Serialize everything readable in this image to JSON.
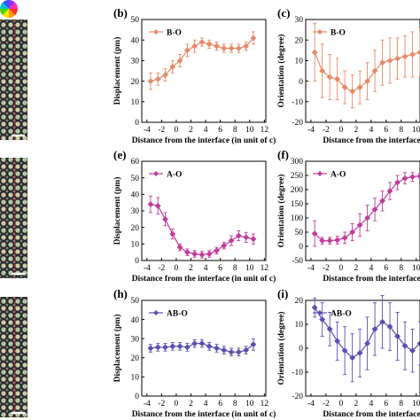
{
  "colors": {
    "bo": "#e58a67",
    "ao": "#c03a9e",
    "abo": "#5a4fb0",
    "interface_line": "#d8283a",
    "scalebar": "#ffffff"
  },
  "images": [
    {
      "name": "micrograph-b",
      "label": "",
      "has_colorwheel": true
    },
    {
      "name": "micrograph-e",
      "label": ""
    },
    {
      "name": "micrograph-h",
      "label": ""
    }
  ],
  "colorwheel": {
    "icon": "color-wheel-icon"
  },
  "chart_data": [
    {
      "id": "b",
      "panel_label": "(b)",
      "type": "line",
      "series": [
        {
          "name": "B-O",
          "x": [
            -3.5,
            -2.5,
            -1.5,
            -0.5,
            0.5,
            1.5,
            2.5,
            3.5,
            4.5,
            5.5,
            6.5,
            7.5,
            8.5,
            9.5,
            10.5
          ],
          "y": [
            20,
            21,
            23,
            27,
            30,
            35,
            37,
            39,
            38,
            37,
            36,
            36,
            36,
            37,
            41
          ],
          "err": [
            4,
            3,
            3,
            3,
            3,
            3,
            3,
            2,
            2,
            2,
            2,
            2,
            2,
            2,
            3
          ]
        }
      ],
      "xlabel": "Distance from the interface (in unit of c)",
      "ylabel": "Displacement (pm)",
      "xlim": [
        -4.7,
        12.2
      ],
      "ylim": [
        0,
        50
      ],
      "xticks": [
        -4,
        -2,
        0,
        2,
        4,
        6,
        8,
        10,
        12
      ],
      "yticks": [
        0,
        10,
        20,
        30,
        40,
        50
      ],
      "legend": "top-left"
    },
    {
      "id": "c",
      "panel_label": "(c)",
      "type": "line",
      "series": [
        {
          "name": "B-O",
          "x": [
            -3.5,
            -2.5,
            -1.5,
            -0.5,
            0.5,
            1.5,
            2.5,
            3.5,
            4.5,
            5.5,
            6.5,
            7.5,
            8.5,
            9.5,
            10.5
          ],
          "y": [
            14,
            5,
            2,
            1,
            -3,
            -5,
            -3,
            0,
            5,
            9,
            10,
            11,
            12,
            13,
            14
          ],
          "err": [
            14,
            13,
            11,
            10,
            8,
            8,
            8,
            9,
            10,
            11,
            11,
            10,
            10,
            11,
            12
          ]
        }
      ],
      "xlabel": "Distance from the interface",
      "ylabel": "Orientation (degree)",
      "xlim": [
        -4.7,
        10.5
      ],
      "ylim": [
        -20,
        30
      ],
      "xticks": [
        -4,
        -2,
        0,
        2,
        4,
        6,
        8,
        10
      ],
      "yticks": [
        -20,
        -10,
        0,
        10,
        20,
        30
      ],
      "legend": "top-left"
    },
    {
      "id": "e",
      "panel_label": "(e)",
      "type": "line",
      "series": [
        {
          "name": "A-O",
          "x": [
            -3.5,
            -2.5,
            -1.5,
            -0.5,
            0.5,
            1.5,
            2.5,
            3.5,
            4.5,
            5.5,
            6.5,
            7.5,
            8.5,
            9.5,
            10.5
          ],
          "y": [
            34,
            33,
            25,
            16,
            8,
            5,
            4,
            3.5,
            4,
            6,
            9,
            12,
            15,
            14,
            13
          ],
          "err": [
            5,
            5,
            4,
            3,
            2,
            2,
            2,
            2,
            2,
            2,
            2,
            3,
            3,
            3,
            3
          ]
        }
      ],
      "xlabel": "Distance from the interface (in unit of c)",
      "ylabel": "Displacement (pm)",
      "xlim": [
        -4.7,
        12.2
      ],
      "ylim": [
        0,
        60
      ],
      "xticks": [
        -4,
        -2,
        0,
        2,
        4,
        6,
        8,
        10,
        12
      ],
      "yticks": [
        0,
        10,
        20,
        30,
        40,
        50,
        60
      ],
      "legend": "top-left"
    },
    {
      "id": "f",
      "panel_label": "(f)",
      "type": "line",
      "series": [
        {
          "name": "A-O",
          "x": [
            -3.5,
            -2.5,
            -1.5,
            -0.5,
            0.5,
            1.5,
            2.5,
            3.5,
            4.5,
            5.5,
            6.5,
            7.5,
            8.5,
            9.5,
            10.5
          ],
          "y": [
            45,
            20,
            20,
            22,
            30,
            50,
            75,
            100,
            130,
            160,
            195,
            225,
            240,
            245,
            248
          ],
          "err": [
            45,
            12,
            12,
            14,
            20,
            30,
            40,
            45,
            40,
            35,
            30,
            25,
            20,
            15,
            10
          ]
        }
      ],
      "xlabel": "Distance from the interface",
      "ylabel": "Orientation (degree)",
      "xlim": [
        -4.7,
        10.5
      ],
      "ylim": [
        -50,
        300
      ],
      "xticks": [
        -4,
        -2,
        0,
        2,
        4,
        6,
        8,
        10
      ],
      "yticks": [
        -50,
        0,
        50,
        100,
        150,
        200,
        250,
        300
      ],
      "legend": "top-left"
    },
    {
      "id": "h",
      "panel_label": "(h)",
      "type": "line",
      "series": [
        {
          "name": "AB-O",
          "x": [
            -3.5,
            -2.5,
            -1.5,
            -0.5,
            0.5,
            1.5,
            2.5,
            3.5,
            4.5,
            5.5,
            6.5,
            7.5,
            8.5,
            9.5,
            10.5
          ],
          "y": [
            25,
            25.5,
            25.5,
            26,
            26,
            25.5,
            27.5,
            27.5,
            26,
            25,
            24,
            23,
            23,
            24,
            27
          ],
          "err": [
            2,
            2,
            2,
            2,
            2,
            2,
            2,
            2,
            2,
            2,
            2,
            2,
            2,
            2,
            3
          ]
        }
      ],
      "xlabel": "Distance from the interface (in unit of c)",
      "ylabel": "Displacement (pm)",
      "xlim": [
        -4.7,
        12.2
      ],
      "ylim": [
        0,
        50
      ],
      "xticks": [
        -4,
        -2,
        0,
        2,
        4,
        6,
        8,
        10,
        12
      ],
      "yticks": [
        0,
        10,
        20,
        30,
        40,
        50
      ],
      "legend": "top-left"
    },
    {
      "id": "i",
      "panel_label": "(i)",
      "type": "line",
      "series": [
        {
          "name": "AB-O",
          "x": [
            -3.5,
            -2.5,
            -1.5,
            -0.5,
            0.5,
            1.5,
            2.5,
            3.5,
            4.5,
            5.5,
            6.5,
            7.5,
            8.5,
            9.5,
            10.5
          ],
          "y": [
            17,
            12,
            8,
            3,
            -1,
            -4,
            -2,
            2,
            8,
            11,
            9,
            5,
            1,
            -1,
            2
          ],
          "err": [
            4,
            7,
            7,
            8,
            10,
            10,
            10,
            11,
            11,
            11,
            10,
            10,
            10,
            9,
            9
          ]
        }
      ],
      "xlabel": "Distance from the interface",
      "ylabel": "Orientation (degree)",
      "xlim": [
        -4.7,
        10.5
      ],
      "ylim": [
        -20,
        20
      ],
      "xticks": [
        -4,
        -2,
        0,
        2,
        4,
        6,
        8,
        10
      ],
      "yticks": [
        -20,
        -10,
        0,
        10,
        20
      ],
      "legend": "top-left"
    }
  ]
}
